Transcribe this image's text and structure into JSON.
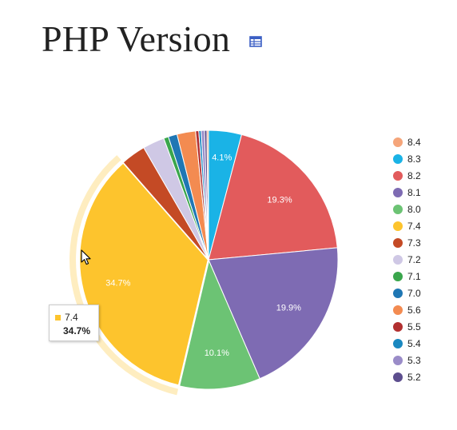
{
  "header": {
    "title": "PHP Version",
    "table_icon": "table-view-icon"
  },
  "colors": {
    "8.4": "#f5a57a",
    "8.3": "#1ab3e6",
    "8.2": "#e25b5c",
    "8.1": "#7e6bb3",
    "8.0": "#6cc374",
    "7.4": "#fdc42d",
    "7.3": "#c44a25",
    "7.2": "#cfc8e5",
    "7.1": "#3aa64c",
    "7.0": "#1f77b4",
    "5.6": "#f38b51",
    "5.5": "#b23030",
    "5.4": "#1a88c0",
    "5.3": "#9a8cc8",
    "5.2": "#5d4e8e"
  },
  "chart_data": {
    "type": "pie",
    "title": "PHP Version",
    "slices": [
      {
        "label": "8.3",
        "value": 4.1
      },
      {
        "label": "8.2",
        "value": 19.3
      },
      {
        "label": "8.1",
        "value": 19.9
      },
      {
        "label": "8.0",
        "value": 10.1
      },
      {
        "label": "7.4",
        "value": 34.7
      },
      {
        "label": "7.3",
        "value": 3.1
      },
      {
        "label": "7.2",
        "value": 2.7
      },
      {
        "label": "7.1",
        "value": 0.6
      },
      {
        "label": "7.0",
        "value": 1.1
      },
      {
        "label": "5.6",
        "value": 2.3
      },
      {
        "label": "5.5",
        "value": 0.4
      },
      {
        "label": "5.4",
        "value": 0.3
      },
      {
        "label": "5.3",
        "value": 0.4
      },
      {
        "label": "5.2",
        "value": 0.3
      },
      {
        "label": "8.4",
        "value": 0.2
      }
    ],
    "shown_labels": {
      "8.3": "4.1%",
      "8.2": "19.3%",
      "8.1": "19.9%",
      "8.0": "10.1%",
      "7.4": "34.7%"
    },
    "legend": [
      "8.4",
      "8.3",
      "8.2",
      "8.1",
      "8.0",
      "7.4",
      "7.3",
      "7.2",
      "7.1",
      "7.0",
      "5.6",
      "5.5",
      "5.4",
      "5.3",
      "5.2"
    ],
    "legend_position": "right",
    "highlighted": "7.4"
  },
  "tooltip": {
    "label": "7.4",
    "value": "34.7%"
  }
}
